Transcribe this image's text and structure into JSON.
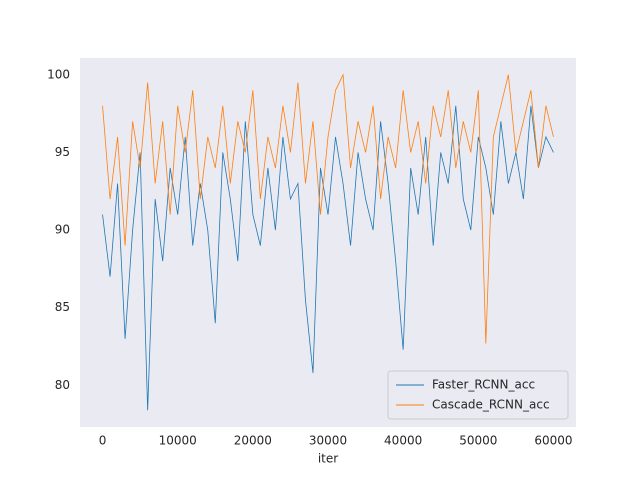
{
  "chart_data": {
    "type": "line",
    "x_label": "iter",
    "x": [
      0,
      1000,
      2000,
      3000,
      4000,
      5000,
      6000,
      7000,
      8000,
      9000,
      10000,
      11000,
      12000,
      13000,
      14000,
      15000,
      16000,
      17000,
      18000,
      19000,
      20000,
      21000,
      22000,
      23000,
      24000,
      25000,
      26000,
      27000,
      28000,
      29000,
      30000,
      31000,
      32000,
      33000,
      34000,
      35000,
      36000,
      37000,
      38000,
      39000,
      40000,
      41000,
      42000,
      43000,
      44000,
      45000,
      46000,
      47000,
      48000,
      49000,
      50000,
      51000,
      52000,
      53000,
      54000,
      55000,
      56000,
      57000,
      58000,
      59000,
      60000
    ],
    "series": [
      {
        "name": "Faster_RCNN_acc",
        "color": "#1f77b4",
        "values": [
          91,
          87,
          93,
          83,
          90,
          95,
          78.4,
          92,
          88,
          94,
          91,
          96,
          89,
          93,
          90,
          84,
          95,
          92,
          88,
          97,
          91,
          89,
          94,
          90,
          96,
          92,
          93,
          85.5,
          80.8,
          94,
          91,
          96,
          93,
          89,
          95,
          92,
          90,
          97,
          93,
          88,
          82.3,
          94,
          91,
          96,
          89,
          95,
          93,
          98,
          92,
          90,
          96,
          94,
          91,
          97,
          93,
          95,
          92,
          98,
          94,
          96,
          95
        ]
      },
      {
        "name": "Cascade_RCNN_acc",
        "color": "#ff7f0e",
        "values": [
          98,
          92,
          96,
          89,
          97,
          94,
          99.5,
          93,
          97,
          91,
          98,
          95,
          99,
          92,
          96,
          94,
          98,
          93,
          97,
          95,
          99,
          92,
          96,
          94,
          98,
          95,
          99.5,
          93,
          97,
          91,
          96,
          99,
          100,
          94,
          97,
          95,
          98,
          92,
          96,
          94,
          99,
          95,
          97,
          93,
          98,
          96,
          99,
          94,
          97,
          95,
          99,
          82.7,
          96,
          98,
          100,
          95,
          97,
          99,
          94,
          98,
          96
        ]
      }
    ],
    "xlim": [
      -3000,
      63000
    ],
    "ylim": [
      77.32,
      101.08
    ],
    "xticks": [
      0,
      10000,
      20000,
      30000,
      40000,
      50000,
      60000
    ],
    "yticks": [
      80,
      85,
      90,
      95,
      100
    ],
    "grid": false,
    "legend": "lower right"
  }
}
